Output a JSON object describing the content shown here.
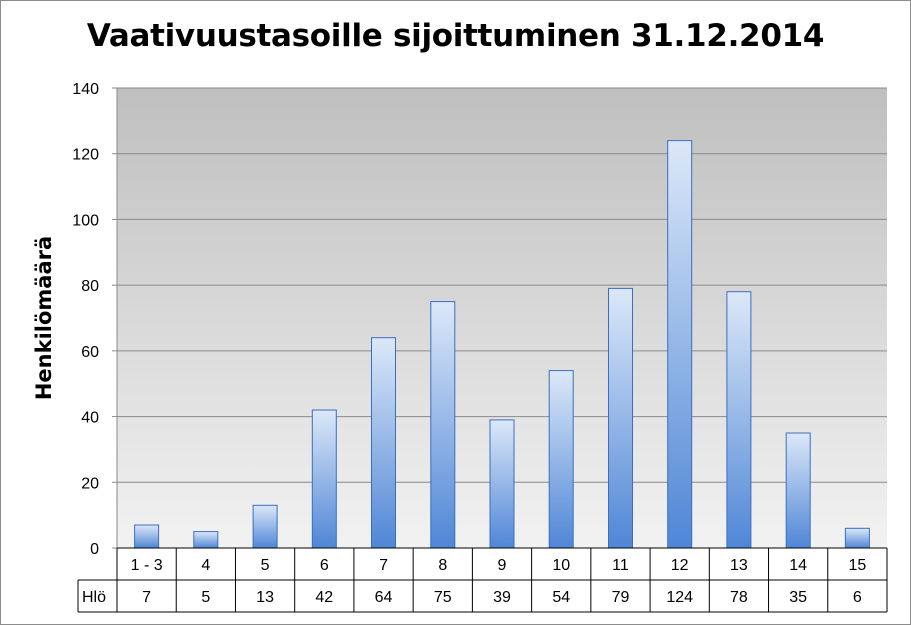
{
  "chart_data": {
    "type": "bar",
    "title": "Vaativuustasoille sijoittuminen 31.12.2014",
    "ylabel": "Henkilömäärä",
    "categories": [
      "1 - 3",
      "4",
      "5",
      "6",
      "7",
      "8",
      "9",
      "10",
      "11",
      "12",
      "13",
      "14",
      "15"
    ],
    "series": [
      {
        "name": "Hlö",
        "values": [
          7,
          5,
          13,
          42,
          64,
          75,
          39,
          54,
          79,
          124,
          78,
          35,
          6
        ]
      }
    ],
    "ylim": [
      0,
      140
    ],
    "yticks": [
      "0",
      "20",
      "40",
      "60",
      "80",
      "100",
      "120",
      "140"
    ],
    "grid": true,
    "legend": "data-table",
    "colors": {
      "bar_top": "#dce8f8",
      "bar_bottom": "#4f86d6",
      "bar_stroke": "#3a6fc0",
      "plot_bg_top": "#bfbfbf",
      "plot_bg_bottom": "#f2f2f2"
    }
  }
}
